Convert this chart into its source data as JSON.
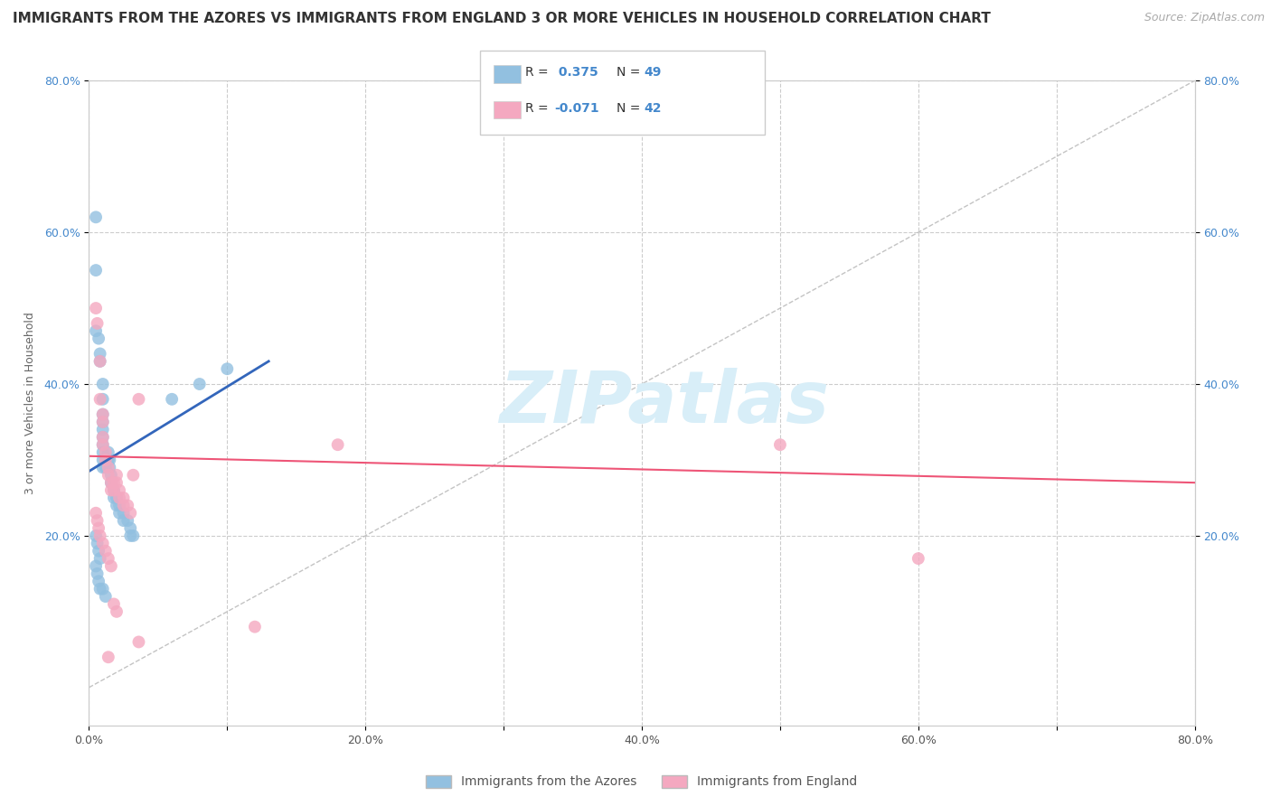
{
  "title": "IMMIGRANTS FROM THE AZORES VS IMMIGRANTS FROM ENGLAND 3 OR MORE VEHICLES IN HOUSEHOLD CORRELATION CHART",
  "source": "Source: ZipAtlas.com",
  "ylabel": "3 or more Vehicles in Household",
  "xlabel": "",
  "xlim": [
    0.0,
    0.8
  ],
  "ylim": [
    -0.05,
    0.8
  ],
  "xtick_labels": [
    "0.0%",
    "",
    "20.0%",
    "",
    "40.0%",
    "",
    "60.0%",
    "",
    "80.0%"
  ],
  "xtick_vals": [
    0.0,
    0.1,
    0.2,
    0.3,
    0.4,
    0.5,
    0.6,
    0.7,
    0.8
  ],
  "ytick_labels": [
    "20.0%",
    "40.0%",
    "60.0%",
    "80.0%"
  ],
  "ytick_vals": [
    0.2,
    0.4,
    0.6,
    0.8
  ],
  "right_ytick_labels": [
    "20.0%",
    "40.0%",
    "60.0%",
    "80.0%"
  ],
  "right_ytick_vals": [
    0.2,
    0.4,
    0.6,
    0.8
  ],
  "watermark": "ZIPatlas",
  "R_azores": 0.375,
  "N_azores": 49,
  "R_england": -0.071,
  "N_england": 42,
  "azores_color": "#92C0E0",
  "england_color": "#F4A8C0",
  "azores_line_color": "#3366BB",
  "england_line_color": "#EE5577",
  "background_color": "#FFFFFF",
  "grid_color": "#CCCCCC",
  "title_fontsize": 11,
  "source_fontsize": 9,
  "label_fontsize": 9,
  "tick_fontsize": 9,
  "scatter_azores": [
    [
      0.005,
      0.62
    ],
    [
      0.005,
      0.55
    ],
    [
      0.005,
      0.47
    ],
    [
      0.007,
      0.46
    ],
    [
      0.008,
      0.44
    ],
    [
      0.008,
      0.43
    ],
    [
      0.01,
      0.4
    ],
    [
      0.01,
      0.38
    ],
    [
      0.01,
      0.36
    ],
    [
      0.01,
      0.35
    ],
    [
      0.01,
      0.34
    ],
    [
      0.01,
      0.33
    ],
    [
      0.01,
      0.32
    ],
    [
      0.01,
      0.31
    ],
    [
      0.01,
      0.3
    ],
    [
      0.01,
      0.29
    ],
    [
      0.012,
      0.3
    ],
    [
      0.012,
      0.29
    ],
    [
      0.014,
      0.31
    ],
    [
      0.014,
      0.3
    ],
    [
      0.015,
      0.3
    ],
    [
      0.015,
      0.29
    ],
    [
      0.016,
      0.28
    ],
    [
      0.016,
      0.27
    ],
    [
      0.018,
      0.26
    ],
    [
      0.018,
      0.25
    ],
    [
      0.02,
      0.25
    ],
    [
      0.02,
      0.24
    ],
    [
      0.022,
      0.24
    ],
    [
      0.022,
      0.23
    ],
    [
      0.025,
      0.23
    ],
    [
      0.025,
      0.22
    ],
    [
      0.028,
      0.22
    ],
    [
      0.03,
      0.21
    ],
    [
      0.03,
      0.2
    ],
    [
      0.032,
      0.2
    ],
    [
      0.005,
      0.2
    ],
    [
      0.006,
      0.19
    ],
    [
      0.007,
      0.18
    ],
    [
      0.008,
      0.17
    ],
    [
      0.005,
      0.16
    ],
    [
      0.006,
      0.15
    ],
    [
      0.007,
      0.14
    ],
    [
      0.008,
      0.13
    ],
    [
      0.01,
      0.13
    ],
    [
      0.012,
      0.12
    ],
    [
      0.06,
      0.38
    ],
    [
      0.08,
      0.4
    ],
    [
      0.1,
      0.42
    ]
  ],
  "scatter_england": [
    [
      0.005,
      0.5
    ],
    [
      0.006,
      0.48
    ],
    [
      0.008,
      0.43
    ],
    [
      0.008,
      0.38
    ],
    [
      0.01,
      0.36
    ],
    [
      0.01,
      0.35
    ],
    [
      0.01,
      0.33
    ],
    [
      0.01,
      0.32
    ],
    [
      0.012,
      0.31
    ],
    [
      0.012,
      0.3
    ],
    [
      0.014,
      0.29
    ],
    [
      0.014,
      0.28
    ],
    [
      0.016,
      0.27
    ],
    [
      0.016,
      0.26
    ],
    [
      0.018,
      0.27
    ],
    [
      0.018,
      0.26
    ],
    [
      0.02,
      0.28
    ],
    [
      0.02,
      0.27
    ],
    [
      0.022,
      0.26
    ],
    [
      0.022,
      0.25
    ],
    [
      0.025,
      0.25
    ],
    [
      0.025,
      0.24
    ],
    [
      0.028,
      0.24
    ],
    [
      0.03,
      0.23
    ],
    [
      0.032,
      0.28
    ],
    [
      0.036,
      0.38
    ],
    [
      0.005,
      0.23
    ],
    [
      0.006,
      0.22
    ],
    [
      0.007,
      0.21
    ],
    [
      0.008,
      0.2
    ],
    [
      0.01,
      0.19
    ],
    [
      0.012,
      0.18
    ],
    [
      0.014,
      0.17
    ],
    [
      0.016,
      0.16
    ],
    [
      0.018,
      0.11
    ],
    [
      0.02,
      0.1
    ],
    [
      0.18,
      0.32
    ],
    [
      0.5,
      0.32
    ],
    [
      0.6,
      0.17
    ],
    [
      0.12,
      0.08
    ],
    [
      0.036,
      0.06
    ],
    [
      0.014,
      0.04
    ]
  ]
}
